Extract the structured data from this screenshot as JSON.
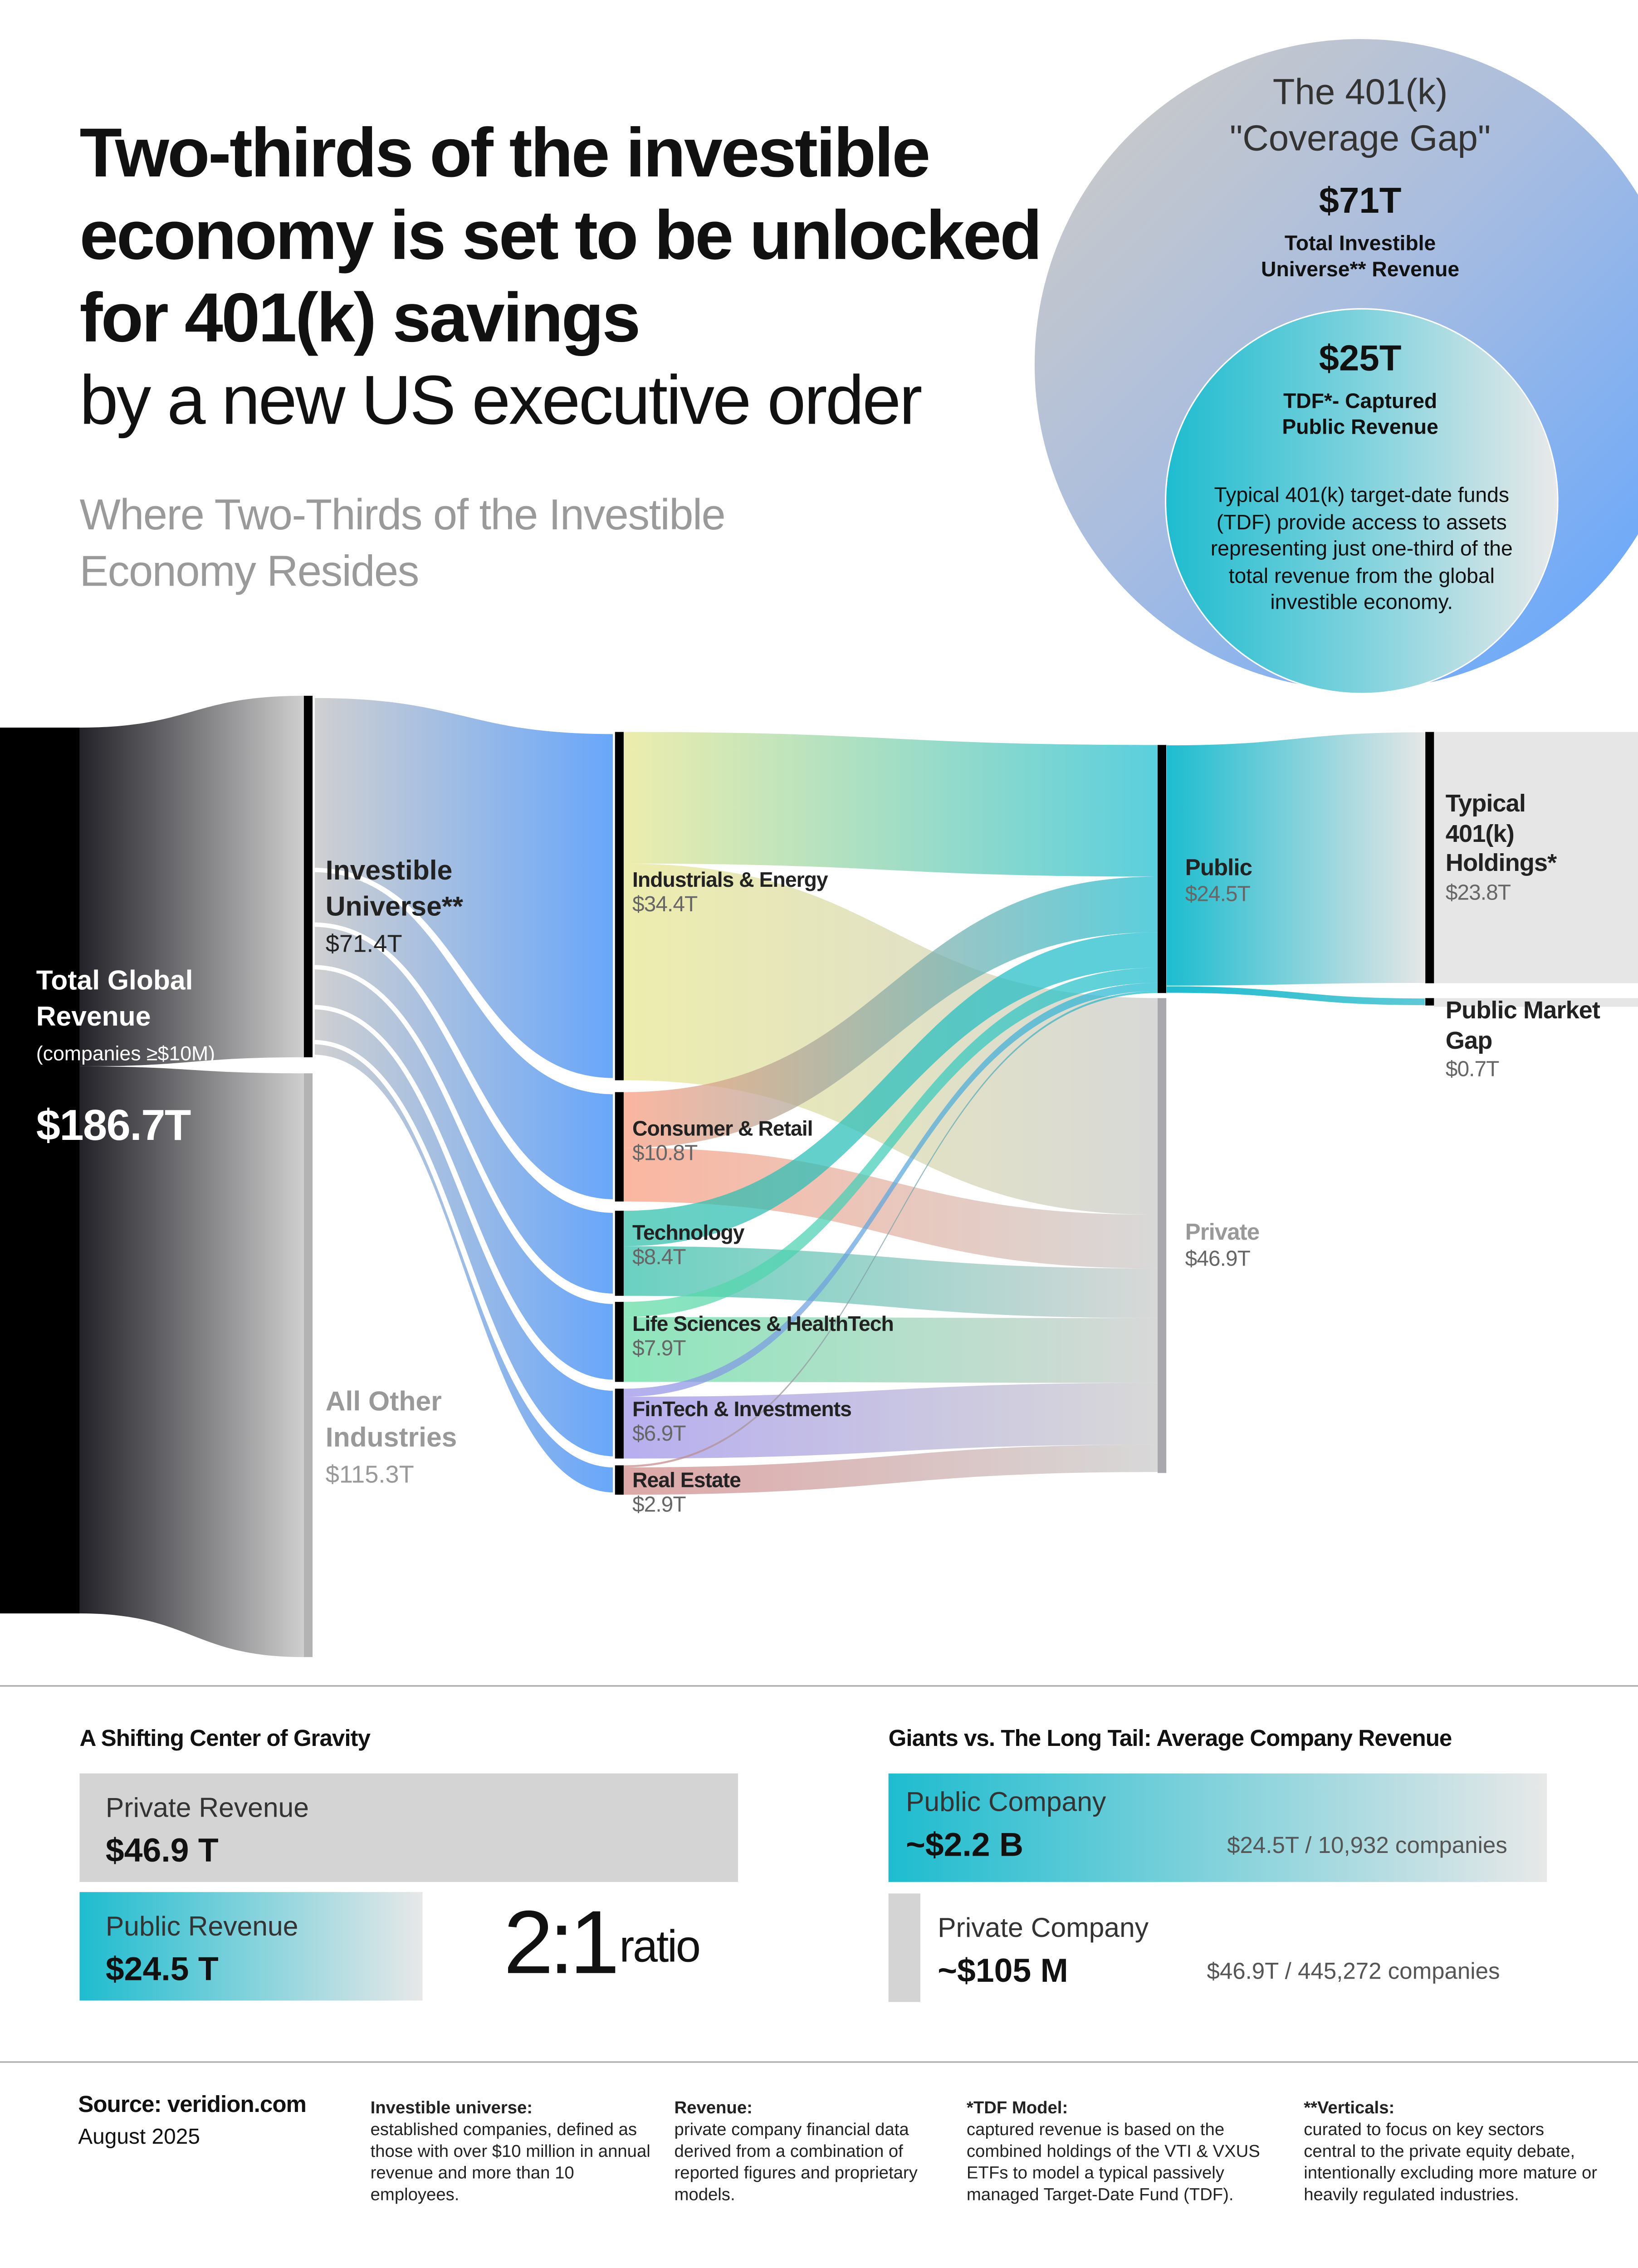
{
  "header": {
    "title_bold": "Two-thirds of the investible economy is set to be unlocked for 401(k) savings",
    "title_light": "by a new US executive order",
    "subtitle": "Where Two-Thirds of the Investible Economy Resides"
  },
  "coverage_gap": {
    "title_line1": "The 401(k)",
    "title_line2": "\"Coverage Gap\"",
    "total_value": "$71T",
    "total_label": "Total Investible Universe** Revenue",
    "captured_value": "$25T",
    "captured_label": "TDF*- Captured Public Revenue",
    "description": "Typical 401(k) target-date funds (TDF) provide access to assets representing just one-third of the total revenue from the global investible economy."
  },
  "chart_data": {
    "type": "sankey",
    "unit": "$T",
    "nodes": [
      {
        "id": "total",
        "label": "Total Global Revenue",
        "sublabel": "(companies ≥$10M)",
        "value_label": "$186.7T",
        "value": 186.7,
        "column": 0,
        "color": "#000000"
      },
      {
        "id": "investible",
        "label": "Investible Universe**",
        "value_label": "$71.4T",
        "value": 71.4,
        "column": 1,
        "color": "#000000"
      },
      {
        "id": "other",
        "label": "All Other Industries",
        "value_label": "$115.3T",
        "value": 115.3,
        "column": 1,
        "color": "#b5b5b5"
      },
      {
        "id": "industrials",
        "label": "Industrials & Energy",
        "value_label": "$34.4T",
        "value": 34.4,
        "column": 2,
        "color": "#e6e68e"
      },
      {
        "id": "consumer",
        "label": "Consumer & Retail",
        "value_label": "$10.8T",
        "value": 10.8,
        "column": 2,
        "color": "#f99a7c"
      },
      {
        "id": "technology",
        "label": "Technology",
        "value_label": "$8.4T",
        "value": 8.4,
        "column": 2,
        "color": "#30bfa9"
      },
      {
        "id": "lifesci",
        "label": "Life Sciences & HealthTech",
        "value_label": "$7.9T",
        "value": 7.9,
        "column": 2,
        "color": "#62dca2"
      },
      {
        "id": "fintech",
        "label": "FinTech & Investments",
        "value_label": "$6.9T",
        "value": 6.9,
        "column": 2,
        "color": "#9c90e8"
      },
      {
        "id": "realestate",
        "label": "Real Estate",
        "value_label": "$2.9T",
        "value": 2.9,
        "column": 2,
        "color": "#d08585"
      },
      {
        "id": "public",
        "label": "Public",
        "value_label": "$24.5T",
        "value": 24.5,
        "column": 3,
        "color": "#1cbccf"
      },
      {
        "id": "private",
        "label": "Private",
        "value_label": "$46.9T",
        "value": 46.9,
        "column": 3,
        "color": "#c8c8c8"
      },
      {
        "id": "holdings",
        "label": "Typical 401(k) Holdings*",
        "value_label": "$23.8T",
        "value": 23.8,
        "column": 4,
        "color": "#e6e6e6"
      },
      {
        "id": "gap",
        "label": "Public Market Gap",
        "value_label": "$0.7T",
        "value": 0.7,
        "column": 4,
        "color": "#e6e6e6"
      }
    ],
    "links": [
      {
        "source": "total",
        "target": "investible",
        "value": 71.4
      },
      {
        "source": "total",
        "target": "other",
        "value": 115.3
      },
      {
        "source": "investible",
        "target": "industrials",
        "value": 34.4
      },
      {
        "source": "investible",
        "target": "consumer",
        "value": 10.8
      },
      {
        "source": "investible",
        "target": "technology",
        "value": 8.4
      },
      {
        "source": "investible",
        "target": "lifesci",
        "value": 7.9
      },
      {
        "source": "investible",
        "target": "fintech",
        "value": 6.9
      },
      {
        "source": "investible",
        "target": "realestate",
        "value": 2.9
      },
      {
        "source": "industrials",
        "target": "public",
        "value": 13.0
      },
      {
        "source": "industrials",
        "target": "private",
        "value": 21.4
      },
      {
        "source": "consumer",
        "target": "public",
        "value": 5.5
      },
      {
        "source": "consumer",
        "target": "private",
        "value": 5.3
      },
      {
        "source": "technology",
        "target": "public",
        "value": 3.5
      },
      {
        "source": "technology",
        "target": "private",
        "value": 4.9
      },
      {
        "source": "lifesci",
        "target": "public",
        "value": 1.5
      },
      {
        "source": "lifesci",
        "target": "private",
        "value": 6.4
      },
      {
        "source": "fintech",
        "target": "public",
        "value": 0.8
      },
      {
        "source": "fintech",
        "target": "private",
        "value": 6.1
      },
      {
        "source": "realestate",
        "target": "public",
        "value": 0.2
      },
      {
        "source": "realestate",
        "target": "private",
        "value": 2.7
      },
      {
        "source": "public",
        "target": "holdings",
        "value": 23.8
      },
      {
        "source": "public",
        "target": "gap",
        "value": 0.7
      }
    ]
  },
  "gravity": {
    "heading": "A Shifting Center of Gravity",
    "private_label": "Private Revenue",
    "private_value": "$46.9 T",
    "public_label": "Public Revenue",
    "public_value": "$24.5 T",
    "ratio_value": "2:1",
    "ratio_label": "ratio"
  },
  "giants": {
    "heading": "Giants vs. The Long Tail: Average Company Revenue",
    "public_label": "Public Company",
    "public_value": "~$2.2 B",
    "public_calc": "$24.5T / 10,932 companies",
    "private_label": "Private Company",
    "private_value": "~$105 M",
    "private_calc": "$46.9T / 445,272 companies"
  },
  "footer": {
    "source": "Source: veridion.com",
    "date": "August 2025",
    "notes": [
      {
        "title": "Investible universe:",
        "text": "established companies, defined as those with over $10 million in annual revenue and more than 10 employees."
      },
      {
        "title": "Revenue:",
        "text": "private company financial data derived from a combination of reported figures and proprietary models."
      },
      {
        "title": "*TDF Model:",
        "text": "captured revenue is based on the combined holdings of the VTI & VXUS ETFs to model a typical passively managed Target-Date Fund (TDF)."
      },
      {
        "title": "**Verticals:",
        "text": "curated to focus on key sectors central to the private equity debate, intentionally excluding more mature or heavily regulated industries."
      }
    ]
  }
}
